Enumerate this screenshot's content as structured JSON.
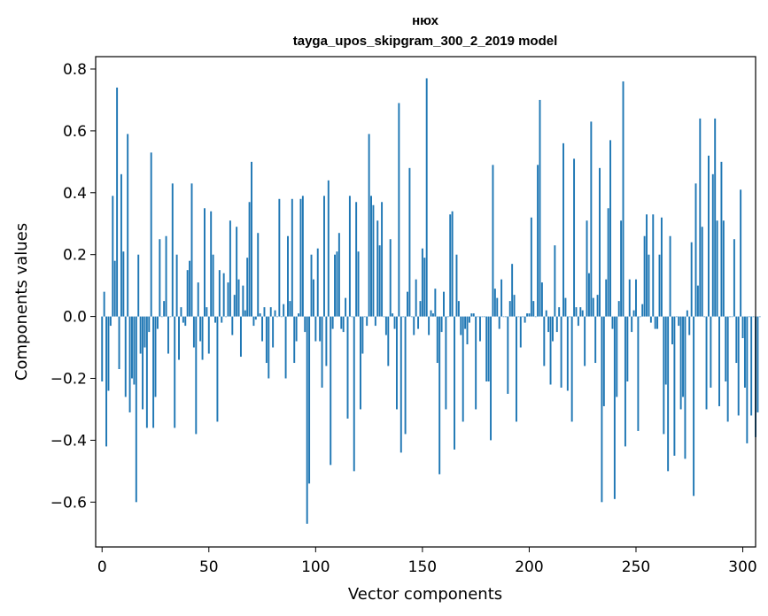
{
  "chart_data": {
    "type": "bar",
    "title": "нюх",
    "subtitle": "tayga_upos_skipgram_300_2_2019 model",
    "xlabel": "Vector components",
    "ylabel": "Components values",
    "xlim": [
      -3,
      306
    ],
    "ylim": [
      -0.745,
      0.84
    ],
    "xticks": [
      0,
      50,
      100,
      150,
      200,
      250,
      300
    ],
    "xtick_labels": [
      "0",
      "50",
      "100",
      "150",
      "200",
      "250",
      "300"
    ],
    "yticks": [
      -0.6,
      -0.4,
      -0.2,
      0.0,
      0.2,
      0.4,
      0.6,
      0.8
    ],
    "ytick_labels": [
      "−0.6",
      "−0.4",
      "−0.2",
      "0.0",
      "0.2",
      "0.4",
      "0.6",
      "0.8"
    ],
    "grid": false,
    "bar_color": "#1f77b4",
    "values": [
      -0.21,
      0.08,
      -0.42,
      -0.24,
      -0.03,
      0.39,
      0.18,
      0.74,
      -0.17,
      0.46,
      0.21,
      -0.26,
      0.59,
      -0.31,
      -0.2,
      -0.22,
      -0.6,
      0.2,
      -0.12,
      -0.3,
      -0.1,
      -0.36,
      -0.05,
      0.53,
      -0.36,
      -0.26,
      -0.04,
      0.25,
      0.0,
      0.05,
      0.26,
      -0.12,
      0.0,
      0.43,
      -0.36,
      0.2,
      -0.14,
      0.03,
      -0.02,
      -0.03,
      0.15,
      0.18,
      0.43,
      -0.1,
      -0.38,
      0.11,
      -0.08,
      -0.14,
      0.35,
      0.03,
      -0.12,
      0.34,
      0.2,
      -0.02,
      -0.34,
      0.15,
      -0.02,
      0.14,
      0.0,
      0.11,
      0.31,
      -0.06,
      0.07,
      0.29,
      0.12,
      -0.13,
      0.1,
      0.02,
      0.19,
      0.37,
      0.5,
      -0.03,
      -0.01,
      0.27,
      0.01,
      -0.08,
      0.03,
      -0.15,
      -0.2,
      0.03,
      -0.1,
      0.02,
      0.0,
      0.38,
      0.0,
      0.04,
      -0.2,
      0.26,
      0.05,
      0.38,
      -0.15,
      -0.08,
      0.01,
      0.38,
      0.39,
      -0.05,
      -0.67,
      -0.54,
      0.2,
      0.12,
      -0.08,
      0.22,
      -0.08,
      -0.23,
      0.39,
      -0.16,
      0.44,
      -0.48,
      -0.04,
      0.2,
      0.21,
      0.27,
      -0.04,
      -0.05,
      0.06,
      -0.33,
      0.39,
      0.0,
      -0.5,
      0.37,
      0.21,
      -0.3,
      -0.12,
      0.0,
      -0.03,
      0.59,
      0.39,
      0.36,
      -0.03,
      0.31,
      0.23,
      0.37,
      0.0,
      -0.06,
      -0.16,
      0.25,
      0.01,
      -0.04,
      -0.3,
      0.69,
      -0.44,
      0.0,
      -0.38,
      0.08,
      0.48,
      0.0,
      -0.06,
      0.12,
      -0.04,
      0.05,
      0.22,
      0.19,
      0.77,
      -0.06,
      0.02,
      0.01,
      0.09,
      -0.15,
      -0.51,
      -0.05,
      0.08,
      -0.3,
      0.0,
      0.33,
      0.34,
      -0.43,
      0.2,
      0.05,
      -0.06,
      -0.34,
      -0.04,
      -0.09,
      -0.02,
      0.01,
      0.01,
      -0.3,
      0.0,
      -0.08,
      0.0,
      0.0,
      -0.21,
      -0.21,
      -0.4,
      0.49,
      0.09,
      0.06,
      -0.04,
      0.12,
      0.0,
      0.0,
      -0.25,
      0.05,
      0.17,
      0.07,
      -0.34,
      0.0,
      -0.1,
      0.0,
      -0.02,
      0.01,
      0.01,
      0.32,
      0.05,
      0.0,
      0.49,
      0.7,
      0.11,
      -0.16,
      0.02,
      -0.05,
      -0.22,
      -0.08,
      0.23,
      -0.05,
      0.03,
      -0.23,
      0.56,
      0.06,
      -0.24,
      0.0,
      -0.34,
      0.51,
      0.03,
      -0.03,
      0.03,
      0.02,
      -0.16,
      0.31,
      0.14,
      0.63,
      0.06,
      -0.15,
      0.07,
      0.48,
      -0.6,
      -0.29,
      0.12,
      0.35,
      0.57,
      -0.04,
      -0.59,
      -0.26,
      0.05,
      0.31,
      0.76,
      -0.42,
      -0.21,
      0.12,
      -0.05,
      0.02,
      0.12,
      -0.37,
      0.0,
      0.04,
      0.26,
      0.33,
      0.2,
      -0.02,
      0.33,
      -0.04,
      -0.04,
      0.2,
      0.32,
      -0.38,
      -0.22,
      -0.5,
      0.26,
      -0.09,
      -0.45,
      0.0,
      -0.03,
      -0.3,
      -0.26,
      -0.46,
      0.02,
      -0.06,
      0.24,
      -0.58,
      0.43,
      0.1,
      0.64,
      0.29,
      0.0,
      -0.3,
      0.52,
      -0.23,
      0.46,
      0.64,
      0.31,
      -0.29,
      0.5,
      0.31,
      -0.21,
      -0.34,
      0.0,
      0.0,
      0.25,
      -0.15,
      -0.32,
      0.41,
      -0.07,
      -0.23,
      -0.41,
      0.0,
      -0.32,
      0.0,
      -0.39,
      -0.31,
      0.0
    ]
  }
}
